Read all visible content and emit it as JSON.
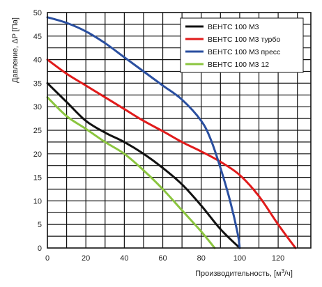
{
  "chart_data": {
    "type": "line",
    "xlabel": "Производительность, [м",
    "xlabel_sup": "3",
    "xlabel_suffix": "/ч]",
    "ylabel": "Давление, ΔP [Па]",
    "xlim": [
      0,
      137
    ],
    "ylim": [
      0,
      50
    ],
    "x_ticks": [
      0,
      20,
      40,
      60,
      80,
      100,
      120
    ],
    "y_ticks": [
      0,
      5,
      10,
      15,
      20,
      25,
      30,
      35,
      40,
      45,
      50
    ],
    "grid": true,
    "legend_position": "top-right",
    "series": [
      {
        "name": "ВЕНТС 100 М3",
        "color": "#111111",
        "x": [
          0,
          10,
          20,
          30,
          40,
          50,
          60,
          70,
          80,
          90,
          100
        ],
        "y": [
          35,
          31,
          27,
          24.5,
          22.5,
          20,
          17,
          13.5,
          9,
          4,
          0
        ]
      },
      {
        "name": "ВЕНТС 100 М3 турбо",
        "color": "#e11b1b",
        "x": [
          0,
          10,
          20,
          30,
          40,
          50,
          60,
          70,
          80,
          90,
          100,
          110,
          120,
          129
        ],
        "y": [
          40,
          37,
          34.5,
          32,
          29.5,
          27,
          24.8,
          22.5,
          20.5,
          18.3,
          15.5,
          11,
          5,
          0
        ]
      },
      {
        "name": "ВЕНТС 100 М3 пресс",
        "color": "#2a4fa0",
        "x": [
          0,
          10,
          20,
          30,
          40,
          50,
          60,
          70,
          80,
          85,
          90,
          95,
          99,
          100
        ],
        "y": [
          49,
          47.8,
          46,
          43.5,
          40.5,
          37.5,
          34.5,
          31.5,
          27,
          23,
          17,
          10,
          3,
          0
        ]
      },
      {
        "name": "ВЕНТС 100 М3 12",
        "color": "#8bc53f",
        "x": [
          0,
          10,
          20,
          30,
          40,
          50,
          60,
          70,
          80,
          87
        ],
        "y": [
          32,
          28,
          25.3,
          22.5,
          20,
          16.5,
          12.5,
          8,
          3.5,
          0
        ]
      }
    ]
  }
}
